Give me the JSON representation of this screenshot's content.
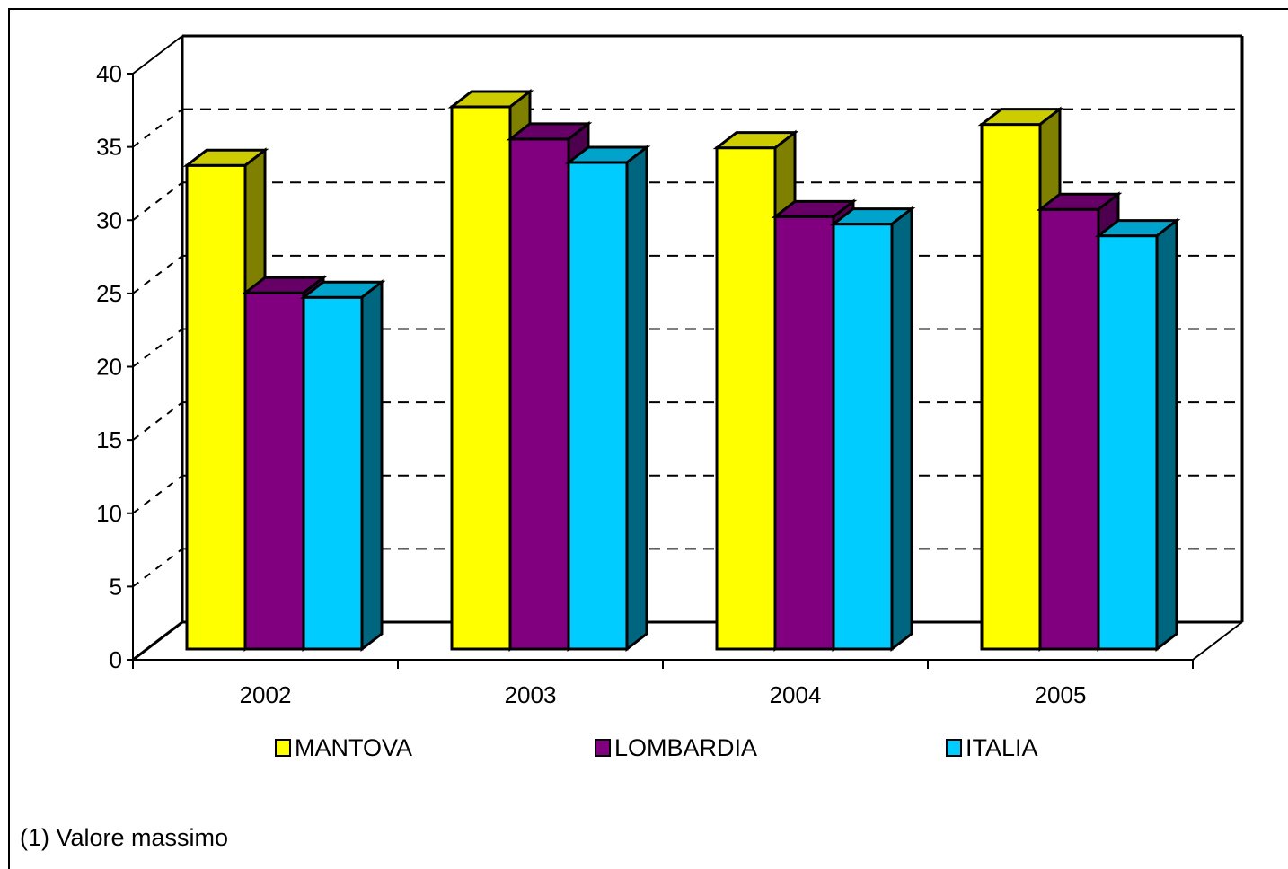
{
  "chart_data": {
    "type": "bar",
    "categories": [
      "2002",
      "2003",
      "2004",
      "2005"
    ],
    "series": [
      {
        "name": "MANTOVA",
        "values": [
          33,
          37,
          34.2,
          35.8
        ],
        "color": "#FFFF00",
        "side": "#808000",
        "top": "#CCCC00"
      },
      {
        "name": "LOMBARDIA",
        "values": [
          24.3,
          34.8,
          29.5,
          30
        ],
        "color": "#800080",
        "side": "#4D004D",
        "top": "#660066"
      },
      {
        "name": "ITALIA",
        "values": [
          24,
          33.2,
          29,
          28.2
        ],
        "color": "#00CCFF",
        "side": "#006680",
        "top": "#00A3CC"
      }
    ],
    "yticks": [
      "0",
      "5",
      "10",
      "15",
      "20",
      "25",
      "30",
      "35",
      "40"
    ],
    "ylim": [
      0,
      40
    ],
    "grid": true,
    "legend": "bottom"
  },
  "footnote": "(1) Valore massimo"
}
